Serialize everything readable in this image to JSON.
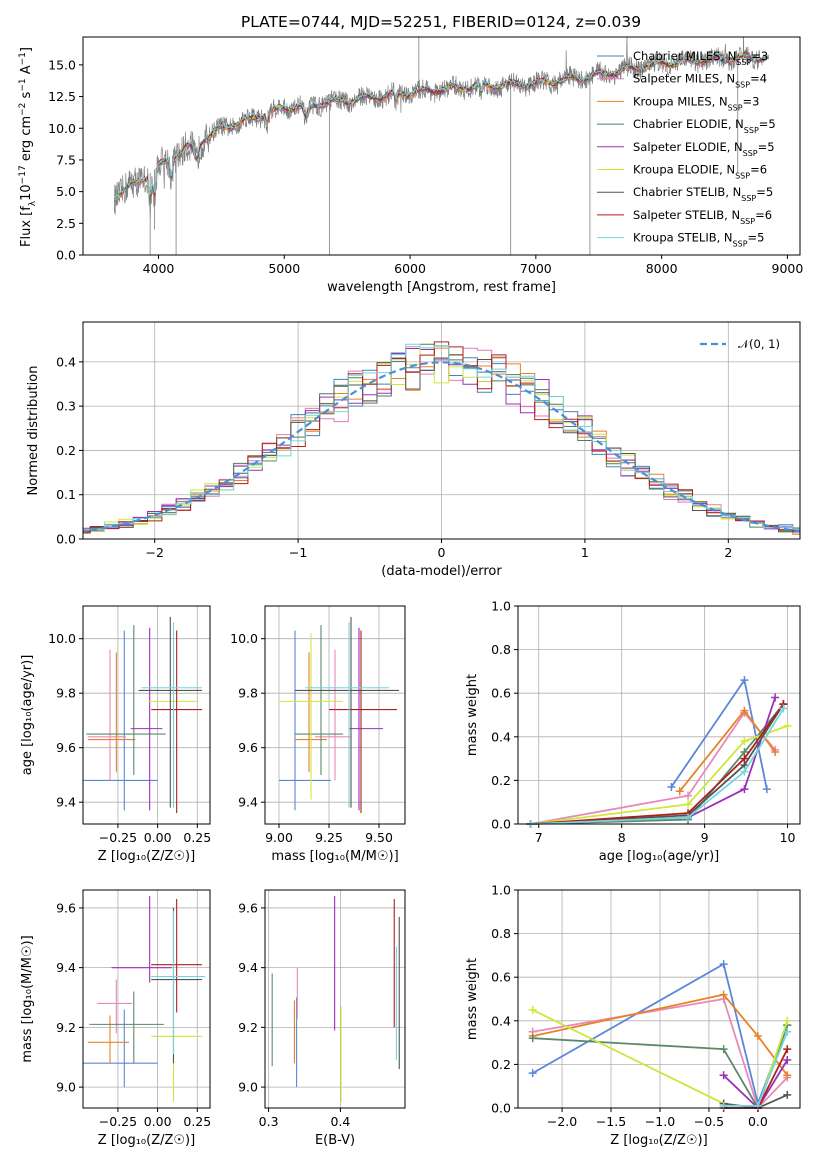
{
  "colors": {
    "models": [
      "#4682b4",
      "#e879b8",
      "#e8822a",
      "#4e7f5d",
      "#9b30b8",
      "#cfe63a",
      "#555555",
      "#b01e1e",
      "#72d6dc"
    ],
    "spectrum": "#808080",
    "normal": "#4a90d9",
    "panel_series": [
      "#5b86d9",
      "#e88ab8",
      "#e8822a",
      "#5a8a6a",
      "#9b30b8",
      "#cfe63a",
      "#555555",
      "#b01e1e",
      "#72d6dc"
    ]
  },
  "chart_data": [
    {
      "id": "spectrum",
      "type": "line",
      "title": "PLATE=0744, MJD=52251, FIBERID=0124, z=0.039",
      "xlabel": "wavelength [Angstrom, rest frame]",
      "ylabel_parts": [
        "Flux [f",
        "λ",
        "10",
        "−17",
        " erg cm",
        "−2",
        " s",
        "−1",
        " A",
        "−1",
        "]"
      ],
      "xlim": [
        3400,
        9100
      ],
      "ylim": [
        0,
        17.2
      ],
      "xticks": [
        "4000",
        "5000",
        "6000",
        "7000",
        "8000",
        "9000"
      ],
      "xtick_values": [
        4000,
        5000,
        6000,
        7000,
        8000,
        9000
      ],
      "yticks": [
        "0.0",
        "2.5",
        "5.0",
        "7.5",
        "10.0",
        "12.5",
        "15.0"
      ],
      "ytick_values": [
        0,
        2.5,
        5,
        7.5,
        10,
        12.5,
        15
      ],
      "legend": [
        {
          "name": "Chabrier MILES",
          "n": "3"
        },
        {
          "name": "Salpeter MILES",
          "n": "4"
        },
        {
          "name": "Kroupa MILES",
          "n": "3"
        },
        {
          "name": "Chabrier ELODIE",
          "n": "5"
        },
        {
          "name": "Salpeter ELODIE",
          "n": "5"
        },
        {
          "name": "Kroupa ELODIE",
          "n": "6"
        },
        {
          "name": "Chabrier STELIB",
          "n": "5"
        },
        {
          "name": "Salpeter STELIB",
          "n": "6"
        },
        {
          "name": "Kroupa STELIB",
          "n": "5"
        }
      ],
      "legend_n_prefix": "N",
      "legend_n_sub": "SSP",
      "continuum": {
        "x": [
          3650,
          3900,
          4000,
          4500,
          5000,
          5500,
          6000,
          6500,
          7000,
          7500,
          8000,
          8500,
          8800
        ],
        "y": [
          4.6,
          6.2,
          7.0,
          10.0,
          11.6,
          12.2,
          12.8,
          13.3,
          13.5,
          14.2,
          15.1,
          15.5,
          15.6
        ]
      },
      "absorption_features": [
        {
          "x": 3934,
          "y": 0
        },
        {
          "x": 3969,
          "y": 2.0
        },
        {
          "x": 4140,
          "y": 0
        },
        {
          "x": 5360,
          "y": 0
        },
        {
          "x": 6070,
          "y": 17.2
        },
        {
          "x": 6800,
          "y": 0
        },
        {
          "x": 7430,
          "y": 0
        },
        {
          "x": 8605,
          "y": 6.5
        }
      ]
    },
    {
      "id": "residuals",
      "type": "histogram",
      "xlabel": "(data-model)/error",
      "ylabel": "Normed distribution",
      "xlim": [
        -2.5,
        2.5
      ],
      "ylim": [
        0,
        0.49
      ],
      "xticks": [
        "−2",
        "−1",
        "0",
        "1",
        "2"
      ],
      "xtick_values": [
        -2,
        -1,
        0,
        1,
        2
      ],
      "yticks": [
        "0.0",
        "0.1",
        "0.2",
        "0.3",
        "0.4"
      ],
      "ytick_values": [
        0,
        0.1,
        0.2,
        0.3,
        0.4
      ],
      "legend": "𝒩(0, 1)",
      "legend_position": "top-right",
      "bin_width": 0.1,
      "reference": "normal(0,1)"
    },
    {
      "id": "age_vs_Z",
      "type": "errorbar",
      "xlabel": "Z [log₁₀(Z/Z☉)]",
      "ylabel": "age  [log₁₀(age/yr)]",
      "xlim": [
        -0.47,
        0.33
      ],
      "ylim": [
        9.32,
        10.12
      ],
      "xticks": [
        "−0.25",
        "0.00",
        "0.25"
      ],
      "xtick_values": [
        -0.25,
        0,
        0.25
      ],
      "yticks": [
        "9.4",
        "9.6",
        "9.8",
        "10.0"
      ],
      "ytick_values": [
        9.4,
        9.6,
        9.8,
        10.0
      ],
      "points": [
        {
          "x": -0.21,
          "xerr": [
            0.26,
            0.21
          ],
          "y": 9.48,
          "yerr": [
            0.11,
            0.55
          ]
        },
        {
          "x": -0.3,
          "xerr": [
            0.14,
            0.1
          ],
          "y": 9.64,
          "yerr": [
            0.16,
            0.32
          ]
        },
        {
          "x": -0.26,
          "xerr": [
            0.18,
            0.12
          ],
          "y": 9.63,
          "yerr": [
            0.12,
            0.32
          ]
        },
        {
          "x": -0.15,
          "xerr": [
            0.3,
            0.2
          ],
          "y": 9.65,
          "yerr": [
            0.15,
            0.4
          ]
        },
        {
          "x": -0.05,
          "xerr": [
            0.12,
            0.08
          ],
          "y": 9.67,
          "yerr": [
            0.3,
            0.37
          ]
        },
        {
          "x": 0.1,
          "xerr": [
            0.16,
            0.15
          ],
          "y": 9.77,
          "yerr": [
            0.36,
            0.25
          ]
        },
        {
          "x": 0.08,
          "xerr": [
            0.2,
            0.2
          ],
          "y": 9.81,
          "yerr": [
            0.43,
            0.27
          ]
        },
        {
          "x": 0.12,
          "xerr": [
            0.16,
            0.16
          ],
          "y": 9.74,
          "yerr": [
            0.38,
            0.29
          ]
        },
        {
          "x": 0.1,
          "xerr": [
            0.2,
            0.18
          ],
          "y": 9.82,
          "yerr": [
            0.44,
            0.24
          ]
        }
      ]
    },
    {
      "id": "age_vs_mass",
      "type": "errorbar",
      "xlabel": "mass [log₁₀(M/M☉)]",
      "ylabel": "",
      "xlim": [
        8.93,
        9.63
      ],
      "ylim": [
        9.32,
        10.12
      ],
      "xticks": [
        "9.00",
        "9.25",
        "9.50"
      ],
      "xtick_values": [
        9.0,
        9.25,
        9.5
      ],
      "yticks": [
        "9.4",
        "9.6",
        "9.8",
        "10.0"
      ],
      "ytick_values": [
        9.4,
        9.6,
        9.8,
        10.0
      ],
      "points": [
        {
          "x": 9.08,
          "xerr": [
            0.08,
            0.18
          ],
          "y": 9.48,
          "yerr": [
            0.11,
            0.55
          ]
        },
        {
          "x": 9.28,
          "xerr": [
            0.1,
            0.08
          ],
          "y": 9.64,
          "yerr": [
            0.16,
            0.32
          ]
        },
        {
          "x": 9.15,
          "xerr": [
            0.07,
            0.09
          ],
          "y": 9.63,
          "yerr": [
            0.12,
            0.32
          ]
        },
        {
          "x": 9.21,
          "xerr": [
            0.13,
            0.11
          ],
          "y": 9.65,
          "yerr": [
            0.15,
            0.4
          ]
        },
        {
          "x": 9.4,
          "xerr": [
            0.05,
            0.12
          ],
          "y": 9.67,
          "yerr": [
            0.3,
            0.37
          ]
        },
        {
          "x": 9.16,
          "xerr": [
            0.16,
            0.16
          ],
          "y": 9.77,
          "yerr": [
            0.36,
            0.25
          ]
        },
        {
          "x": 9.36,
          "xerr": [
            0.28,
            0.24
          ],
          "y": 9.81,
          "yerr": [
            0.43,
            0.27
          ]
        },
        {
          "x": 9.41,
          "xerr": [
            0.16,
            0.18
          ],
          "y": 9.74,
          "yerr": [
            0.38,
            0.29
          ]
        },
        {
          "x": 9.35,
          "xerr": [
            0.22,
            0.2
          ],
          "y": 9.82,
          "yerr": [
            0.44,
            0.24
          ]
        }
      ]
    },
    {
      "id": "weight_vs_age",
      "type": "line",
      "xlabel": "age  [log₁₀(age/yr)]",
      "ylabel": "mass weight",
      "xlim": [
        6.75,
        10.15
      ],
      "ylim": [
        0,
        1
      ],
      "xticks": [
        "7",
        "8",
        "9",
        "10"
      ],
      "xtick_values": [
        7,
        8,
        9,
        10
      ],
      "yticks": [
        "0.0",
        "0.2",
        "0.4",
        "0.6",
        "0.8",
        "1.0"
      ],
      "ytick_values": [
        0,
        0.2,
        0.4,
        0.6,
        0.8,
        1.0
      ],
      "series": [
        {
          "x": [
            8.6,
            9.48,
            9.75
          ],
          "y": [
            0.17,
            0.66,
            0.16
          ]
        },
        {
          "x": [
            6.9,
            8.8,
            9.48,
            9.85
          ],
          "y": [
            0.0,
            0.13,
            0.51,
            0.34
          ]
        },
        {
          "x": [
            8.7,
            9.48,
            9.85
          ],
          "y": [
            0.15,
            0.52,
            0.33
          ]
        },
        {
          "x": [
            6.9,
            8.8,
            9.48,
            9.95
          ],
          "y": [
            0.0,
            0.02,
            0.33,
            0.55
          ]
        },
        {
          "x": [
            6.9,
            8.8,
            9.48,
            9.85
          ],
          "y": [
            0.0,
            0.03,
            0.16,
            0.58
          ]
        },
        {
          "x": [
            6.9,
            8.8,
            9.48,
            10.0
          ],
          "y": [
            0.0,
            0.09,
            0.38,
            0.45
          ]
        },
        {
          "x": [
            6.9,
            8.8,
            9.48,
            9.95
          ],
          "y": [
            0.0,
            0.04,
            0.27,
            0.55
          ]
        },
        {
          "x": [
            6.9,
            8.8,
            9.48,
            9.95
          ],
          "y": [
            0.0,
            0.05,
            0.3,
            0.55
          ]
        },
        {
          "x": [
            6.9,
            8.8,
            9.48,
            9.95
          ],
          "y": [
            0.0,
            0.03,
            0.24,
            0.53
          ]
        }
      ]
    },
    {
      "id": "mass_vs_Z",
      "type": "errorbar",
      "xlabel": "Z [log₁₀(Z/Z☉)]",
      "ylabel": "mass [log₁₀(M/M☉)]",
      "xlim": [
        -0.47,
        0.33
      ],
      "ylim": [
        8.93,
        9.66
      ],
      "xticks": [
        "−0.25",
        "0.00",
        "0.25"
      ],
      "xtick_values": [
        -0.25,
        0,
        0.25
      ],
      "yticks": [
        "9.0",
        "9.2",
        "9.4",
        "9.6"
      ],
      "ytick_values": [
        9.0,
        9.2,
        9.4,
        9.6
      ],
      "points": [
        {
          "x": -0.21,
          "xerr": [
            0.26,
            0.21
          ],
          "y": 9.08,
          "yerr": [
            0.08,
            0.18
          ]
        },
        {
          "x": -0.26,
          "xerr": [
            0.12,
            0.1
          ],
          "y": 9.28,
          "yerr": [
            0.1,
            0.08
          ]
        },
        {
          "x": -0.3,
          "xerr": [
            0.14,
            0.12
          ],
          "y": 9.15,
          "yerr": [
            0.07,
            0.09
          ]
        },
        {
          "x": -0.15,
          "xerr": [
            0.28,
            0.19
          ],
          "y": 9.21,
          "yerr": [
            0.13,
            0.11
          ]
        },
        {
          "x": -0.05,
          "xerr": [
            0.24,
            0.14
          ],
          "y": 9.4,
          "yerr": [
            0.05,
            0.24
          ]
        },
        {
          "x": 0.1,
          "xerr": [
            0.14,
            0.18
          ],
          "y": 9.17,
          "yerr": [
            0.22,
            0.1
          ]
        },
        {
          "x": 0.1,
          "xerr": [
            0.14,
            0.18
          ],
          "y": 9.36,
          "yerr": [
            0.28,
            0.24
          ]
        },
        {
          "x": 0.12,
          "xerr": [
            0.16,
            0.16
          ],
          "y": 9.41,
          "yerr": [
            0.16,
            0.22
          ]
        },
        {
          "x": 0.1,
          "xerr": [
            0.14,
            0.2
          ],
          "y": 9.37,
          "yerr": [
            0.26,
            0.22
          ]
        }
      ]
    },
    {
      "id": "mass_vs_ebv",
      "type": "errorbar",
      "xlabel": "E(B-V)",
      "ylabel": "",
      "xlim": [
        0.295,
        0.49
      ],
      "ylim": [
        8.93,
        9.66
      ],
      "xticks": [
        "0.3",
        "0.4"
      ],
      "xtick_values": [
        0.3,
        0.4
      ],
      "yticks": [
        "9.0",
        "9.2",
        "9.4",
        "9.6"
      ],
      "ytick_values": [
        9.0,
        9.2,
        9.4,
        9.6
      ],
      "points": [
        {
          "x": 0.339,
          "y": 9.08,
          "yerr": [
            0.08,
            0.22
          ]
        },
        {
          "x": 0.34,
          "y": 9.31,
          "yerr": [
            0.08,
            0.09
          ]
        },
        {
          "x": 0.336,
          "y": 9.15,
          "yerr": [
            0.07,
            0.14
          ]
        },
        {
          "x": 0.305,
          "y": 9.2,
          "yerr": [
            0.13,
            0.18
          ]
        },
        {
          "x": 0.392,
          "y": 9.4,
          "yerr": [
            0.21,
            0.24
          ]
        },
        {
          "x": 0.401,
          "y": 9.17,
          "yerr": [
            0.22,
            0.1
          ]
        },
        {
          "x": 0.482,
          "y": 9.3,
          "yerr": [
            0.24,
            0.27
          ]
        },
        {
          "x": 0.475,
          "y": 9.41,
          "yerr": [
            0.21,
            0.22
          ]
        },
        {
          "x": 0.478,
          "y": 9.25,
          "yerr": [
            0.16,
            0.22
          ]
        }
      ]
    },
    {
      "id": "weight_vs_Z",
      "type": "line",
      "xlabel": "Z [log₁₀(Z/Z☉)]",
      "ylabel": "mass weight",
      "xlim": [
        -2.45,
        0.43
      ],
      "ylim": [
        0,
        1
      ],
      "xticks": [
        "−2.0",
        "−1.5",
        "−1.0",
        "−0.5",
        "0.0"
      ],
      "xtick_values": [
        -2.0,
        -1.5,
        -1.0,
        -0.5,
        0.0
      ],
      "yticks": [
        "0.0",
        "0.2",
        "0.4",
        "0.6",
        "0.8",
        "1.0"
      ],
      "ytick_values": [
        0,
        0.2,
        0.4,
        0.6,
        0.8,
        1.0
      ],
      "series": [
        {
          "x": [
            -2.3,
            -0.35,
            0.0,
            0.3
          ],
          "y": [
            0.16,
            0.66,
            0.02,
            0.38
          ]
        },
        {
          "x": [
            -2.3,
            -0.35,
            0.0,
            0.3
          ],
          "y": [
            0.35,
            0.5,
            0.0,
            0.14
          ]
        },
        {
          "x": [
            -2.3,
            -0.35,
            0.0,
            0.3
          ],
          "y": [
            0.33,
            0.52,
            0.33,
            0.15
          ]
        },
        {
          "x": [
            -2.3,
            -0.35,
            0.0,
            0.3
          ],
          "y": [
            0.32,
            0.27,
            0.0,
            0.38
          ]
        },
        {
          "x": [
            -0.35,
            0.0,
            0.3
          ],
          "y": [
            0.15,
            0.0,
            0.22
          ]
        },
        {
          "x": [
            -2.3,
            -0.35,
            0.0,
            0.3
          ],
          "y": [
            0.45,
            0.02,
            0.0,
            0.4
          ]
        },
        {
          "x": [
            -0.35,
            0.0,
            0.3
          ],
          "y": [
            0.02,
            0.0,
            0.06
          ]
        },
        {
          "x": [
            -0.35,
            0.0,
            0.3
          ],
          "y": [
            0.0,
            0.0,
            0.27
          ]
        },
        {
          "x": [
            -0.35,
            0.0,
            0.3
          ],
          "y": [
            0.01,
            0.01,
            0.35
          ]
        }
      ]
    }
  ]
}
